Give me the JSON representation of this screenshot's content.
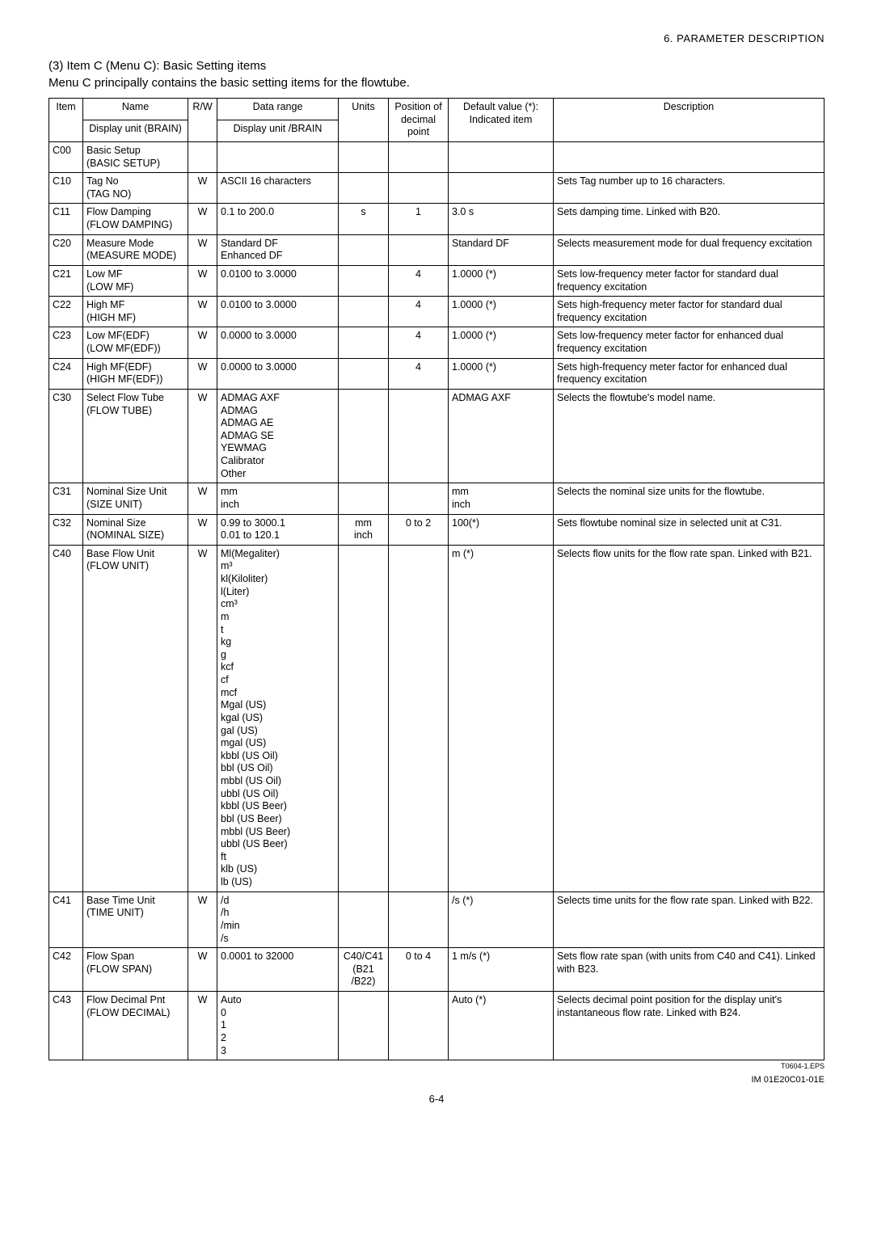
{
  "header_right": "6.   PARAMETER DESCRIPTION",
  "heading1": "(3) Item C (Menu C): Basic Setting items",
  "heading2": "Menu C principally contains the basic setting items for the flowtube.",
  "thead": {
    "item": "Item",
    "name_top": "Name",
    "name_bottom": "Display unit\n(BRAIN)",
    "rw": "R/W",
    "range_top": "Data range",
    "range_bottom": "Display unit\n/BRAIN",
    "units": "Units",
    "pos": "Position\nof decimal\npoint",
    "def": "Default value\n(*): Indicated item",
    "desc": "Description"
  },
  "rows": [
    {
      "item": "C00",
      "name": "Basic Setup\n(BASIC SETUP)",
      "rw": "",
      "range": "",
      "units": "",
      "pos": "",
      "def": "",
      "desc": ""
    },
    {
      "item": "C10",
      "name": "Tag No\n(TAG NO)",
      "rw": "W",
      "range": "ASCII 16 characters",
      "units": "",
      "pos": "",
      "def": "",
      "desc": "Sets Tag number up to 16 characters."
    },
    {
      "item": "C11",
      "name": "Flow Damping\n(FLOW DAMPING)",
      "rw": "W",
      "range": "0.1 to 200.0",
      "units": "s",
      "pos": "1",
      "def": "3.0 s",
      "desc": "Sets damping time. Linked with B20."
    },
    {
      "item": "C20",
      "name": "Measure Mode\n(MEASURE MODE)",
      "rw": "W",
      "range": "Standard DF\nEnhanced DF",
      "units": "",
      "pos": "",
      "def": "Standard DF",
      "desc": "Selects measurement mode for dual frequency excitation"
    },
    {
      "item": "C21",
      "name": "Low MF\n(LOW MF)",
      "rw": "W",
      "range": "0.0100 to 3.0000",
      "units": "",
      "pos": "4",
      "def": "1.0000 (*)",
      "desc": "Sets low-frequency meter factor for standard dual frequency excitation"
    },
    {
      "item": "C22",
      "name": "High MF\n(HIGH MF)",
      "rw": "W",
      "range": "0.0100 to 3.0000",
      "units": "",
      "pos": "4",
      "def": "1.0000 (*)",
      "desc": "Sets high-frequency meter factor for standard dual frequency excitation"
    },
    {
      "item": "C23",
      "name": "Low MF(EDF)\n(LOW MF(EDF))",
      "rw": "W",
      "range": "0.0000 to 3.0000",
      "units": "",
      "pos": "4",
      "def": "1.0000 (*)",
      "desc": "Sets low-frequency meter factor for enhanced dual frequency excitation"
    },
    {
      "item": "C24",
      "name": "High MF(EDF)\n(HIGH MF(EDF))",
      "rw": "W",
      "range": "0.0000 to 3.0000",
      "units": "",
      "pos": "4",
      "def": "1.0000 (*)",
      "desc": "Sets high-frequency meter factor for enhanced dual frequency excitation"
    },
    {
      "item": "C30",
      "name": "Select Flow Tube\n(FLOW TUBE)",
      "rw": "W",
      "range": "ADMAG AXF\nADMAG\nADMAG AE\nADMAG SE\nYEWMAG\nCalibrator\nOther",
      "units": "",
      "pos": "",
      "def": "ADMAG AXF",
      "desc": "Selects the flowtube's model name."
    },
    {
      "item": "C31",
      "name": "Nominal Size Unit\n(SIZE UNIT)",
      "rw": "W",
      "range": "mm\ninch",
      "units": "",
      "pos": "",
      "def": "mm\ninch",
      "desc": "Selects the nominal size units for the flowtube."
    },
    {
      "item": "C32",
      "name": "Nominal Size\n(NOMINAL SIZE)",
      "rw": "W",
      "range": "0.99 to 3000.1\n0.01 to 120.1",
      "units": "mm\ninch",
      "pos": "0 to 2",
      "def": "100(*)",
      "desc": "Sets flowtube nominal size in selected unit at C31."
    },
    {
      "item": "C40",
      "name": "Base Flow Unit\n(FLOW UNIT)",
      "rw": "W",
      "range": "Ml(Megaliter)\nm³\nkl(Kiloliter)\nl(Liter)\ncm³\nm\nt\nkg\ng\nkcf\ncf\nmcf\nMgal (US)\nkgal (US)\ngal (US)\nmgal (US)\nkbbl (US Oil)\nbbl (US Oil)\nmbbl (US Oil)\nubbl (US Oil)\nkbbl (US Beer)\nbbl (US Beer)\nmbbl (US Beer)\nubbl (US Beer)\nft\nklb (US)\nlb (US)",
      "units": "",
      "pos": "",
      "def": "m (*)",
      "desc": "Selects flow units for the flow rate span. Linked with B21."
    },
    {
      "item": "C41",
      "name": "Base Time Unit\n(TIME UNIT)",
      "rw": "W",
      "range": "/d\n/h\n/min\n/s",
      "units": "",
      "pos": "",
      "def": "/s (*)",
      "desc": "Selects time units for the flow rate span. Linked with B22."
    },
    {
      "item": "C42",
      "name": "Flow Span\n(FLOW SPAN)",
      "rw": "W",
      "range": "0.0001 to 32000",
      "units": "C40/C41\n(B21\n/B22)",
      "pos": "0 to 4",
      "def": "1 m/s (*)",
      "desc": "Sets flow rate span (with units from C40 and C41). Linked with B23."
    },
    {
      "item": "C43",
      "name": "Flow Decimal Pnt\n(FLOW DECIMAL)",
      "rw": "W",
      "range": "Auto\n0\n1\n2\n3",
      "units": "",
      "pos": "",
      "def": "Auto (*)",
      "desc": "Selects decimal point position for the display unit's instantaneous flow rate. Linked with B24."
    }
  ],
  "eps": "T0604-1.EPS",
  "page_num": "6-4",
  "footer_right": "IM 01E20C01-01E"
}
